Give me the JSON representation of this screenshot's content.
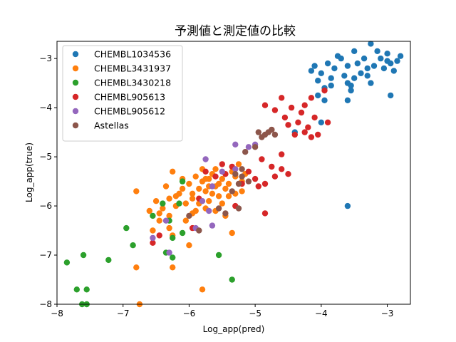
{
  "chart_data": {
    "type": "scatter",
    "title": "予測値と測定値の比較",
    "xlabel": "Log_app(pred)",
    "ylabel": "Log_app(true)",
    "xlim": [
      -8.0,
      -2.65
    ],
    "ylim": [
      -8.0,
      -2.65
    ],
    "xticks": [
      -8,
      -7,
      -6,
      -5,
      -4,
      -3
    ],
    "yticks": [
      -8,
      -7,
      -6,
      -5,
      -4,
      -3
    ],
    "tick_labels": {
      "x": [
        "−8",
        "−7",
        "−6",
        "−5",
        "−4",
        "−3"
      ],
      "y": [
        "−8",
        "−7",
        "−6",
        "−5",
        "−4",
        "−3"
      ]
    },
    "grid": false,
    "legend_position": "top-left",
    "series": [
      {
        "name": "CHEMBL1034536",
        "color": "#1f77b4",
        "points": [
          [
            -4.15,
            -3.25
          ],
          [
            -4.1,
            -3.15
          ],
          [
            -4.05,
            -3.45
          ],
          [
            -4.0,
            -3.3
          ],
          [
            -3.95,
            -3.6
          ],
          [
            -3.9,
            -3.1
          ],
          [
            -3.85,
            -3.4
          ],
          [
            -3.8,
            -3.2
          ],
          [
            -3.75,
            -2.95
          ],
          [
            -3.7,
            -3.0
          ],
          [
            -3.65,
            -3.35
          ],
          [
            -3.6,
            -3.5
          ],
          [
            -3.55,
            -3.65
          ],
          [
            -3.5,
            -3.4
          ],
          [
            -3.45,
            -3.1
          ],
          [
            -3.4,
            -3.3
          ],
          [
            -3.35,
            -3.0
          ],
          [
            -3.3,
            -3.2
          ],
          [
            -3.25,
            -3.5
          ],
          [
            -3.2,
            -3.15
          ],
          [
            -3.15,
            -2.85
          ],
          [
            -3.1,
            -3.0
          ],
          [
            -3.05,
            -3.2
          ],
          [
            -3.0,
            -2.9
          ],
          [
            -2.95,
            -3.1
          ],
          [
            -2.9,
            -3.25
          ],
          [
            -2.85,
            -3.05
          ],
          [
            -2.8,
            -2.95
          ],
          [
            -3.95,
            -3.85
          ],
          [
            -4.05,
            -3.75
          ],
          [
            -3.85,
            -3.55
          ],
          [
            -3.6,
            -3.15
          ],
          [
            -3.5,
            -2.85
          ],
          [
            -3.25,
            -2.7
          ],
          [
            -3.0,
            -3.05
          ],
          [
            -2.95,
            -3.75
          ],
          [
            -3.6,
            -3.85
          ],
          [
            -4.0,
            -4.3
          ],
          [
            -4.4,
            -4.5
          ],
          [
            -3.6,
            -6.0
          ],
          [
            -3.55,
            -3.55
          ],
          [
            -3.3,
            -3.35
          ]
        ]
      },
      {
        "name": "CHEMBL3431937",
        "color": "#ff7f0e",
        "points": [
          [
            -6.8,
            -5.7
          ],
          [
            -6.6,
            -6.1
          ],
          [
            -6.5,
            -5.9
          ],
          [
            -6.45,
            -6.3
          ],
          [
            -6.4,
            -6.05
          ],
          [
            -6.35,
            -5.6
          ],
          [
            -6.3,
            -6.2
          ],
          [
            -6.25,
            -5.3
          ],
          [
            -6.2,
            -5.8
          ],
          [
            -6.15,
            -5.75
          ],
          [
            -6.1,
            -5.45
          ],
          [
            -6.05,
            -5.95
          ],
          [
            -6.0,
            -5.55
          ],
          [
            -5.95,
            -5.85
          ],
          [
            -5.9,
            -5.4
          ],
          [
            -5.85,
            -5.65
          ],
          [
            -5.8,
            -5.5
          ],
          [
            -5.75,
            -5.7
          ],
          [
            -5.7,
            -5.9
          ],
          [
            -5.65,
            -5.35
          ],
          [
            -5.6,
            -5.6
          ],
          [
            -5.55,
            -5.8
          ],
          [
            -5.5,
            -5.45
          ],
          [
            -5.45,
            -5.65
          ],
          [
            -5.4,
            -5.55
          ],
          [
            -5.35,
            -5.3
          ],
          [
            -5.3,
            -5.75
          ],
          [
            -5.25,
            -5.15
          ],
          [
            -5.2,
            -5.5
          ],
          [
            -5.15,
            -5.35
          ],
          [
            -6.55,
            -6.5
          ],
          [
            -6.3,
            -6.45
          ],
          [
            -6.2,
            -6.0
          ],
          [
            -6.05,
            -6.3
          ],
          [
            -5.95,
            -6.15
          ],
          [
            -5.8,
            -5.25
          ],
          [
            -5.7,
            -5.45
          ],
          [
            -5.6,
            -5.25
          ],
          [
            -5.5,
            -5.95
          ],
          [
            -5.4,
            -5.8
          ],
          [
            -5.3,
            -5.4
          ],
          [
            -5.2,
            -5.7
          ],
          [
            -6.25,
            -6.6
          ],
          [
            -6.0,
            -6.8
          ],
          [
            -5.8,
            -7.7
          ],
          [
            -6.8,
            -7.25
          ],
          [
            -6.75,
            -8.0
          ],
          [
            -6.25,
            -7.25
          ],
          [
            -6.45,
            -6.15
          ],
          [
            -5.9,
            -6.1
          ],
          [
            -5.75,
            -6.05
          ],
          [
            -5.6,
            -6.1
          ],
          [
            -5.45,
            -6.2
          ],
          [
            -5.35,
            -6.55
          ],
          [
            -5.95,
            -5.75
          ],
          [
            -5.85,
            -5.95
          ],
          [
            -5.7,
            -5.6
          ],
          [
            -5.55,
            -5.55
          ],
          [
            -5.65,
            -5.75
          ],
          [
            -5.75,
            -5.45
          ],
          [
            -6.1,
            -5.65
          ],
          [
            -6.3,
            -5.85
          ]
        ]
      },
      {
        "name": "CHEMBL3430218",
        "color": "#2ca02c",
        "points": [
          [
            -7.85,
            -7.15
          ],
          [
            -7.7,
            -7.7
          ],
          [
            -7.6,
            -7.0
          ],
          [
            -7.55,
            -7.7
          ],
          [
            -7.62,
            -8.0
          ],
          [
            -7.55,
            -8.0
          ],
          [
            -7.22,
            -7.1
          ],
          [
            -6.95,
            -6.45
          ],
          [
            -6.85,
            -6.8
          ],
          [
            -6.55,
            -6.2
          ],
          [
            -6.4,
            -5.95
          ],
          [
            -6.3,
            -6.3
          ],
          [
            -6.25,
            -6.65
          ],
          [
            -6.15,
            -5.95
          ],
          [
            -6.1,
            -5.5
          ],
          [
            -5.55,
            -7.0
          ],
          [
            -5.35,
            -7.5
          ],
          [
            -6.25,
            -7.05
          ],
          [
            -6.35,
            -6.95
          ],
          [
            -6.1,
            -6.55
          ]
        ]
      },
      {
        "name": "CHEMBL905613",
        "color": "#d62728",
        "points": [
          [
            -4.85,
            -3.95
          ],
          [
            -4.7,
            -4.05
          ],
          [
            -4.6,
            -3.8
          ],
          [
            -4.55,
            -4.2
          ],
          [
            -4.45,
            -4.0
          ],
          [
            -4.35,
            -4.3
          ],
          [
            -4.3,
            -4.1
          ],
          [
            -4.25,
            -3.95
          ],
          [
            -4.2,
            -4.4
          ],
          [
            -4.15,
            -3.8
          ],
          [
            -4.1,
            -4.2
          ],
          [
            -4.05,
            -4.55
          ],
          [
            -3.95,
            -3.65
          ],
          [
            -3.9,
            -4.3
          ],
          [
            -4.75,
            -4.45
          ],
          [
            -4.6,
            -4.95
          ],
          [
            -4.5,
            -4.35
          ],
          [
            -4.4,
            -4.55
          ],
          [
            -4.25,
            -4.5
          ],
          [
            -4.15,
            -4.6
          ],
          [
            -4.9,
            -5.05
          ],
          [
            -4.75,
            -5.2
          ],
          [
            -4.7,
            -5.4
          ],
          [
            -4.6,
            -5.25
          ],
          [
            -4.5,
            -5.35
          ],
          [
            -4.85,
            -5.55
          ],
          [
            -4.95,
            -5.6
          ],
          [
            -5.0,
            -5.45
          ],
          [
            -5.1,
            -5.3
          ],
          [
            -5.2,
            -5.55
          ],
          [
            -5.35,
            -5.2
          ],
          [
            -5.45,
            -5.35
          ],
          [
            -5.5,
            -5.15
          ],
          [
            -5.6,
            -5.4
          ],
          [
            -5.75,
            -5.3
          ],
          [
            -5.85,
            -5.85
          ],
          [
            -5.95,
            -6.45
          ],
          [
            -6.55,
            -6.75
          ],
          [
            -6.45,
            -6.6
          ],
          [
            -4.85,
            -6.15
          ],
          [
            -5.3,
            -6.0
          ]
        ]
      },
      {
        "name": "CHEMBL905612",
        "color": "#9467bd",
        "points": [
          [
            -5.3,
            -4.75
          ],
          [
            -5.1,
            -4.8
          ],
          [
            -5.0,
            -4.75
          ],
          [
            -5.75,
            -5.05
          ],
          [
            -5.5,
            -5.3
          ],
          [
            -5.65,
            -5.6
          ],
          [
            -5.8,
            -5.9
          ],
          [
            -5.7,
            -6.1
          ],
          [
            -5.65,
            -6.4
          ],
          [
            -5.9,
            -6.45
          ],
          [
            -6.35,
            -6.3
          ],
          [
            -6.55,
            -6.65
          ],
          [
            -6.3,
            -6.95
          ],
          [
            -5.3,
            -5.25
          ]
        ]
      },
      {
        "name": "Astellas",
        "color": "#8c564b",
        "points": [
          [
            -4.9,
            -4.6
          ],
          [
            -4.85,
            -4.55
          ],
          [
            -4.8,
            -4.5
          ],
          [
            -4.75,
            -4.45
          ],
          [
            -4.7,
            -4.55
          ],
          [
            -4.95,
            -4.5
          ],
          [
            -5.0,
            -4.8
          ],
          [
            -5.15,
            -4.9
          ],
          [
            -5.2,
            -5.25
          ],
          [
            -5.3,
            -5.35
          ],
          [
            -5.35,
            -5.7
          ],
          [
            -5.25,
            -5.55
          ],
          [
            -5.1,
            -5.5
          ],
          [
            -5.45,
            -6.15
          ],
          [
            -5.55,
            -6.05
          ],
          [
            -5.85,
            -6.5
          ],
          [
            -6.0,
            -6.2
          ],
          [
            -5.25,
            -6.05
          ],
          [
            -5.2,
            -5.4
          ]
        ]
      }
    ]
  }
}
